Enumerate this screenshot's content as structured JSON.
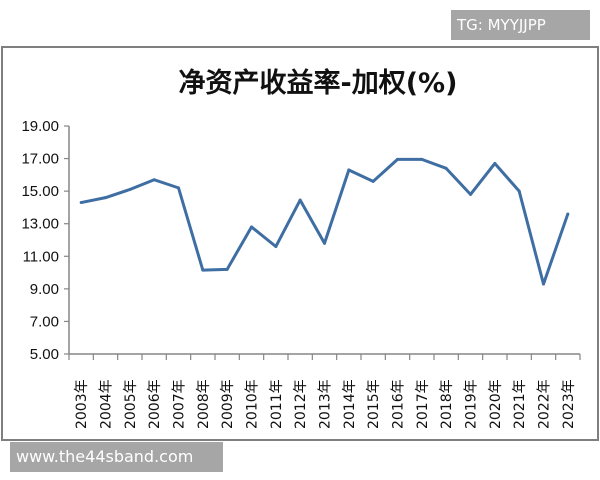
{
  "watermarks": {
    "top_right": "TG: MYYJJPP",
    "bottom_left": "www.the44sband.com"
  },
  "chart_data": {
    "type": "line",
    "title": "净资产收益率-加权(%)",
    "xlabel": "",
    "ylabel": "",
    "categories": [
      "2003年",
      "2004年",
      "2005年",
      "2006年",
      "2007年",
      "2008年",
      "2009年",
      "2010年",
      "2011年",
      "2012年",
      "2013年",
      "2014年",
      "2015年",
      "2016年",
      "2017年",
      "2018年",
      "2019年",
      "2020年",
      "2021年",
      "2022年",
      "2023年"
    ],
    "series": [
      {
        "values": [
          14.3,
          14.6,
          15.1,
          15.7,
          15.2,
          10.15,
          10.2,
          12.8,
          11.6,
          14.45,
          11.8,
          16.3,
          15.6,
          16.95,
          16.95,
          16.4,
          14.8,
          16.7,
          15.0,
          9.3,
          13.6
        ]
      }
    ],
    "ylim": [
      5,
      19
    ],
    "yticks": [
      "5.00",
      "7.00",
      "9.00",
      "11.00",
      "13.00",
      "15.00",
      "17.00",
      "19.00"
    ],
    "grid": false,
    "legend": "none",
    "line_color": "#3f6ea3"
  }
}
